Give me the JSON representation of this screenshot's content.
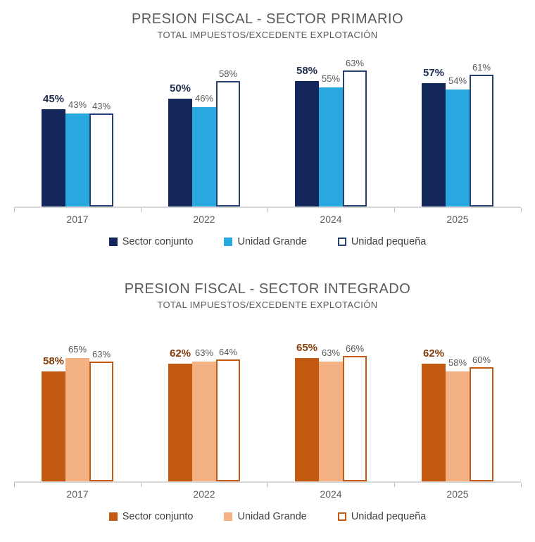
{
  "chart_data": [
    {
      "type": "bar",
      "title": "PRESION FISCAL - SECTOR PRIMARIO",
      "subtitle": "TOTAL IMPUESTOS/EXCEDENTE EXPLOTACIÓN",
      "categories": [
        "2017",
        "2022",
        "2024",
        "2025"
      ],
      "series": [
        {
          "name": "Sector conjunto",
          "values": [
            45,
            50,
            58,
            57
          ],
          "fill": "#13275B",
          "outline": null,
          "label_color": "#203050",
          "label_bold": true
        },
        {
          "name": "Unidad Grande",
          "values": [
            43,
            46,
            55,
            54
          ],
          "fill": "#29A8E0",
          "outline": null,
          "label_color": "#595959",
          "label_bold": false
        },
        {
          "name": "Unidad pequeña",
          "values": [
            43,
            58,
            63,
            61
          ],
          "fill": "#FFFFFF",
          "outline": "#24426F",
          "label_color": "#595959",
          "label_bold": false
        }
      ],
      "unit": "%",
      "ylim": [
        0,
        73
      ],
      "grid": false,
      "legend_position": "bottom",
      "axis_color": "#D9D9D9"
    },
    {
      "type": "bar",
      "title": "PRESION FISCAL - SECTOR INTEGRADO",
      "subtitle": "TOTAL IMPUESTOS/EXCEDENTE EXPLOTACIÓN",
      "categories": [
        "2017",
        "2022",
        "2024",
        "2025"
      ],
      "series": [
        {
          "name": "Sector conjunto",
          "values": [
            58,
            62,
            65,
            62
          ],
          "fill": "#C45911",
          "outline": null,
          "label_color": "#843C0C",
          "label_bold": true
        },
        {
          "name": "Unidad Grande",
          "values": [
            65,
            63,
            63,
            58
          ],
          "fill": "#F4B183",
          "outline": null,
          "label_color": "#595959",
          "label_bold": false
        },
        {
          "name": "Unidad pequeña",
          "values": [
            63,
            64,
            66,
            60
          ],
          "fill": "#FFFFFF",
          "outline": "#C45911",
          "label_color": "#595959",
          "label_bold": false
        }
      ],
      "unit": "%",
      "ylim": [
        0,
        76
      ],
      "grid": false,
      "legend_position": "bottom",
      "axis_color": "#D9D9D9"
    }
  ]
}
